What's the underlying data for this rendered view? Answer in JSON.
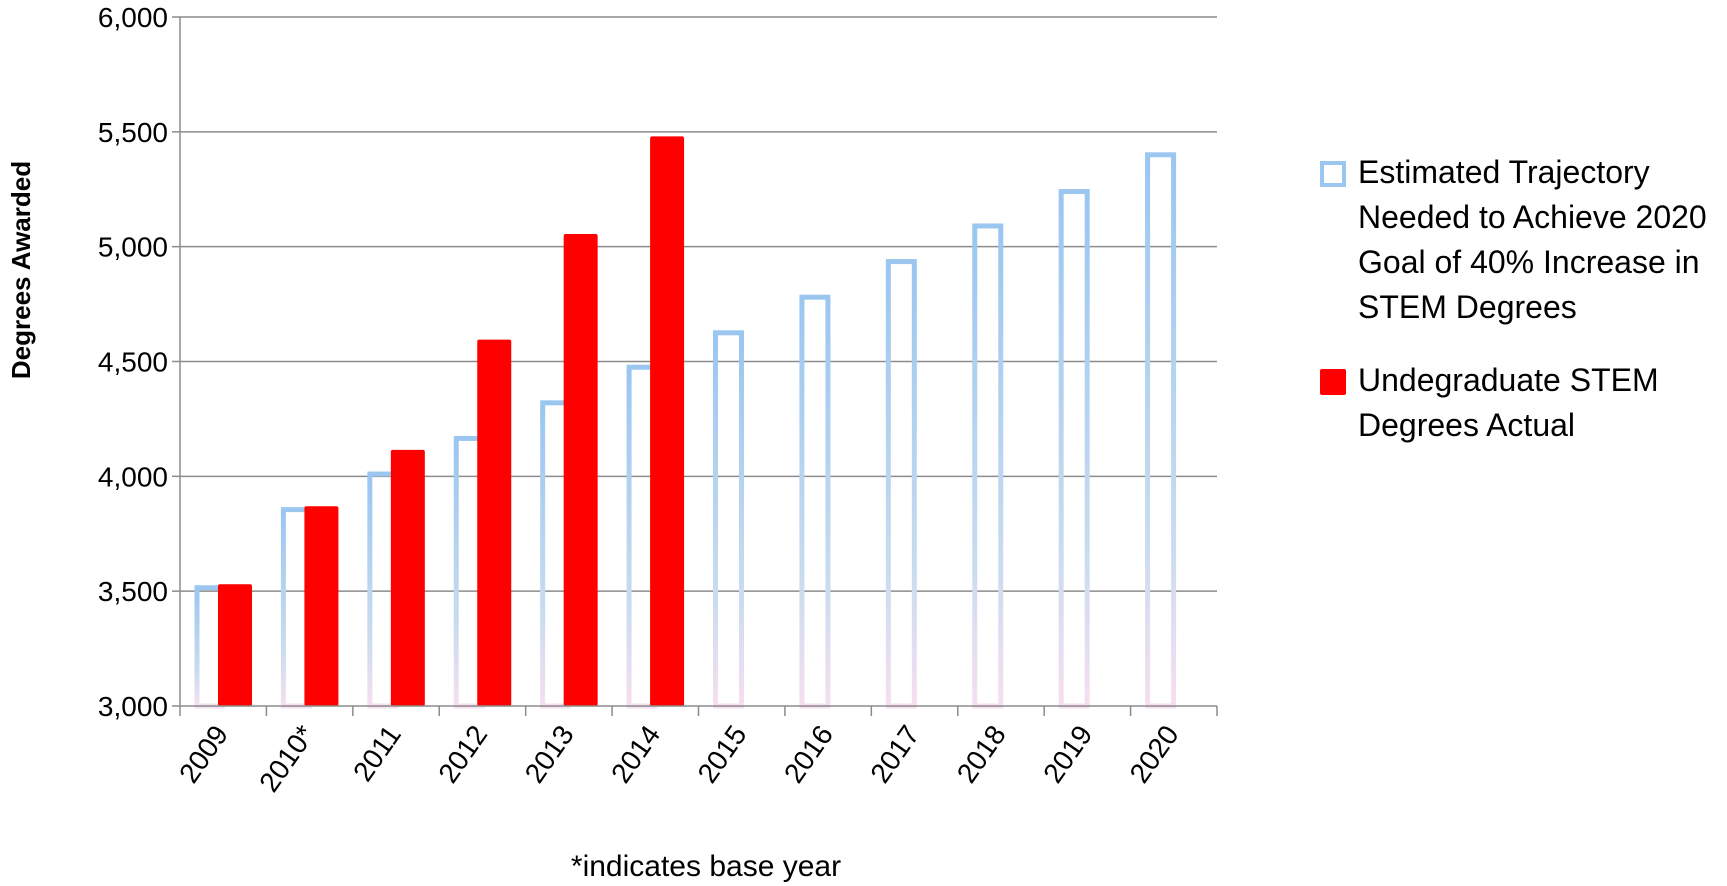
{
  "chart_data": {
    "type": "bar",
    "categories": [
      "2009",
      "2010*",
      "2011",
      "2012",
      "2013",
      "2014",
      "2015",
      "2016",
      "2017",
      "2018",
      "2019",
      "2020"
    ],
    "series": [
      {
        "name": "Estimated Trajectory Needed to Achieve 2020 Goal of 40% Increase in STEM Degrees",
        "values": [
          3515,
          3855,
          4010,
          4165,
          4320,
          4475,
          4625,
          4780,
          4935,
          5090,
          5240,
          5400
        ],
        "style": "outline",
        "color": "#9ac6f0"
      },
      {
        "name": "Undegraduate STEM Degrees Actual",
        "values": [
          3530,
          3870,
          4115,
          4595,
          5055,
          5480,
          null,
          null,
          null,
          null,
          null,
          null
        ],
        "style": "filled",
        "color": "#ff0000"
      }
    ],
    "ylabel": "Degrees Awarded",
    "ylim": [
      3000,
      6000
    ],
    "yticks": [
      3000,
      3500,
      4000,
      4500,
      5000,
      5500,
      6000
    ],
    "ytick_labels": [
      "3,000",
      "3,500",
      "4,000",
      "4,500",
      "5,000",
      "5,500",
      "6,000"
    ],
    "note": "*indicates base year",
    "grid": true,
    "legend_position": "right"
  }
}
